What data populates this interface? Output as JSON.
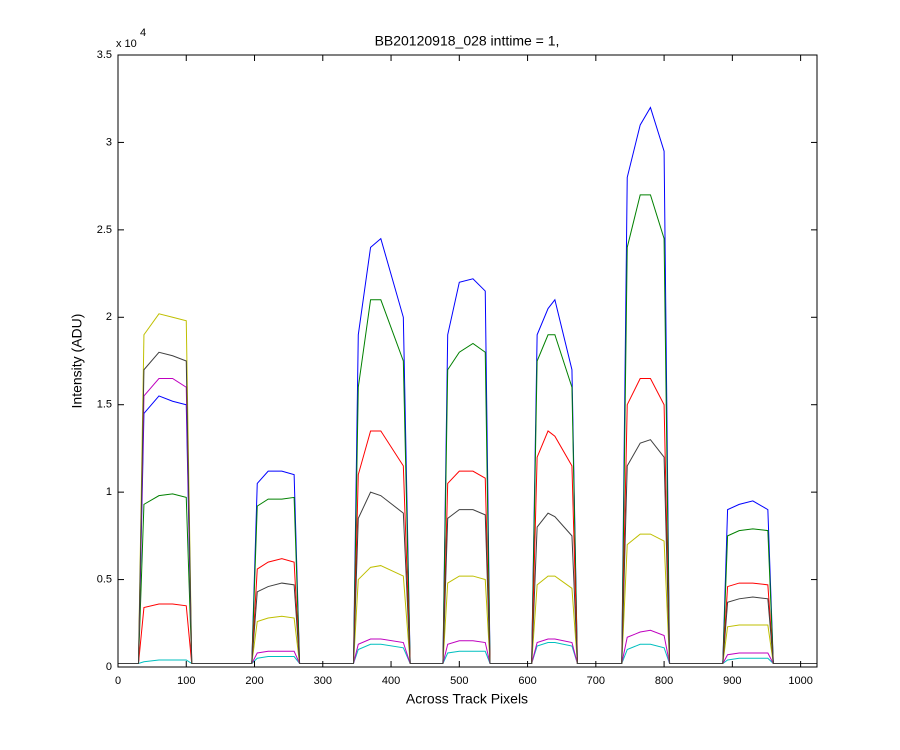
{
  "chart_data": {
    "type": "line",
    "title": "BB20120918_028 inttime = 1,",
    "x_label": "Across Track Pixels",
    "y_label": "Intensity (ADU)",
    "y_multiplier": {
      "base": "x 10",
      "exponent": "4"
    },
    "xlim": [
      0,
      1024
    ],
    "xticks": [
      0,
      100,
      200,
      300,
      400,
      500,
      600,
      700,
      800,
      900,
      1000
    ],
    "ylim": [
      0,
      3.5
    ],
    "yticks": [
      0,
      0.5,
      1,
      1.5,
      2,
      2.5,
      3,
      3.5
    ],
    "grid": false,
    "x": [
      0,
      30,
      38,
      60,
      80,
      100,
      108,
      196,
      204,
      220,
      240,
      258,
      266,
      345,
      352,
      370,
      385,
      418,
      428,
      476,
      483,
      500,
      520,
      538,
      545,
      606,
      614,
      630,
      640,
      665,
      673,
      738,
      746,
      765,
      780,
      800,
      808,
      886,
      893,
      910,
      930,
      952,
      960,
      1024
    ],
    "series": [
      {
        "color": "#0000ff",
        "values": [
          0.02,
          0.02,
          1.45,
          1.55,
          1.52,
          1.5,
          0.02,
          0.02,
          1.05,
          1.12,
          1.12,
          1.1,
          0.02,
          0.02,
          1.9,
          2.4,
          2.45,
          2.0,
          0.02,
          0.02,
          1.9,
          2.2,
          2.22,
          2.15,
          0.02,
          0.02,
          1.9,
          2.05,
          2.1,
          1.7,
          0.02,
          0.02,
          2.8,
          3.1,
          3.2,
          2.95,
          0.02,
          0.02,
          0.9,
          0.93,
          0.95,
          0.9,
          0.02,
          0.02
        ]
      },
      {
        "color": "#008000",
        "values": [
          0.02,
          0.02,
          0.93,
          0.98,
          0.99,
          0.97,
          0.02,
          0.02,
          0.92,
          0.96,
          0.96,
          0.97,
          0.02,
          0.02,
          1.6,
          2.1,
          2.1,
          1.75,
          0.02,
          0.02,
          1.7,
          1.8,
          1.85,
          1.8,
          0.02,
          0.02,
          1.75,
          1.9,
          1.9,
          1.6,
          0.02,
          0.02,
          2.4,
          2.7,
          2.7,
          2.45,
          0.02,
          0.02,
          0.75,
          0.78,
          0.79,
          0.78,
          0.02,
          0.02
        ]
      },
      {
        "color": "#ff0000",
        "values": [
          0.02,
          0.02,
          0.34,
          0.36,
          0.36,
          0.35,
          0.02,
          0.02,
          0.56,
          0.6,
          0.62,
          0.6,
          0.02,
          0.02,
          1.1,
          1.35,
          1.35,
          1.15,
          0.02,
          0.02,
          1.05,
          1.12,
          1.12,
          1.08,
          0.02,
          0.02,
          1.2,
          1.35,
          1.32,
          1.15,
          0.02,
          0.02,
          1.5,
          1.65,
          1.65,
          1.5,
          0.02,
          0.02,
          0.46,
          0.48,
          0.48,
          0.47,
          0.02,
          0.02
        ]
      },
      {
        "color": "#00bfbf",
        "values": [
          0.02,
          0.02,
          0.03,
          0.04,
          0.04,
          0.04,
          0.02,
          0.02,
          0.05,
          0.06,
          0.06,
          0.06,
          0.02,
          0.02,
          0.1,
          0.13,
          0.13,
          0.11,
          0.02,
          0.02,
          0.08,
          0.09,
          0.09,
          0.09,
          0.02,
          0.02,
          0.12,
          0.14,
          0.14,
          0.12,
          0.02,
          0.02,
          0.1,
          0.13,
          0.13,
          0.11,
          0.02,
          0.02,
          0.04,
          0.05,
          0.05,
          0.05,
          0.02,
          0.02
        ]
      },
      {
        "color": "#bf00bf",
        "values": [
          0.02,
          0.02,
          1.55,
          1.65,
          1.65,
          1.6,
          0.02,
          0.02,
          0.08,
          0.09,
          0.09,
          0.09,
          0.02,
          0.02,
          0.13,
          0.16,
          0.16,
          0.14,
          0.02,
          0.02,
          0.13,
          0.15,
          0.15,
          0.14,
          0.02,
          0.02,
          0.14,
          0.16,
          0.16,
          0.14,
          0.02,
          0.02,
          0.17,
          0.2,
          0.21,
          0.18,
          0.02,
          0.02,
          0.07,
          0.08,
          0.08,
          0.08,
          0.02,
          0.02
        ]
      },
      {
        "color": "#bfbf00",
        "values": [
          0.02,
          0.02,
          1.9,
          2.02,
          2.0,
          1.98,
          0.02,
          0.02,
          0.26,
          0.28,
          0.29,
          0.28,
          0.02,
          0.02,
          0.5,
          0.57,
          0.58,
          0.52,
          0.02,
          0.02,
          0.48,
          0.52,
          0.52,
          0.5,
          0.02,
          0.02,
          0.47,
          0.52,
          0.52,
          0.45,
          0.02,
          0.02,
          0.7,
          0.76,
          0.76,
          0.72,
          0.02,
          0.02,
          0.23,
          0.24,
          0.24,
          0.24,
          0.02,
          0.02
        ]
      },
      {
        "color": "#404040",
        "values": [
          0.02,
          0.02,
          1.7,
          1.8,
          1.78,
          1.75,
          0.02,
          0.02,
          0.43,
          0.46,
          0.48,
          0.47,
          0.02,
          0.02,
          0.85,
          1.0,
          0.98,
          0.88,
          0.02,
          0.02,
          0.85,
          0.9,
          0.9,
          0.87,
          0.02,
          0.02,
          0.8,
          0.88,
          0.86,
          0.75,
          0.02,
          0.02,
          1.15,
          1.28,
          1.3,
          1.2,
          0.02,
          0.02,
          0.37,
          0.39,
          0.4,
          0.39,
          0.02,
          0.02
        ]
      }
    ]
  }
}
